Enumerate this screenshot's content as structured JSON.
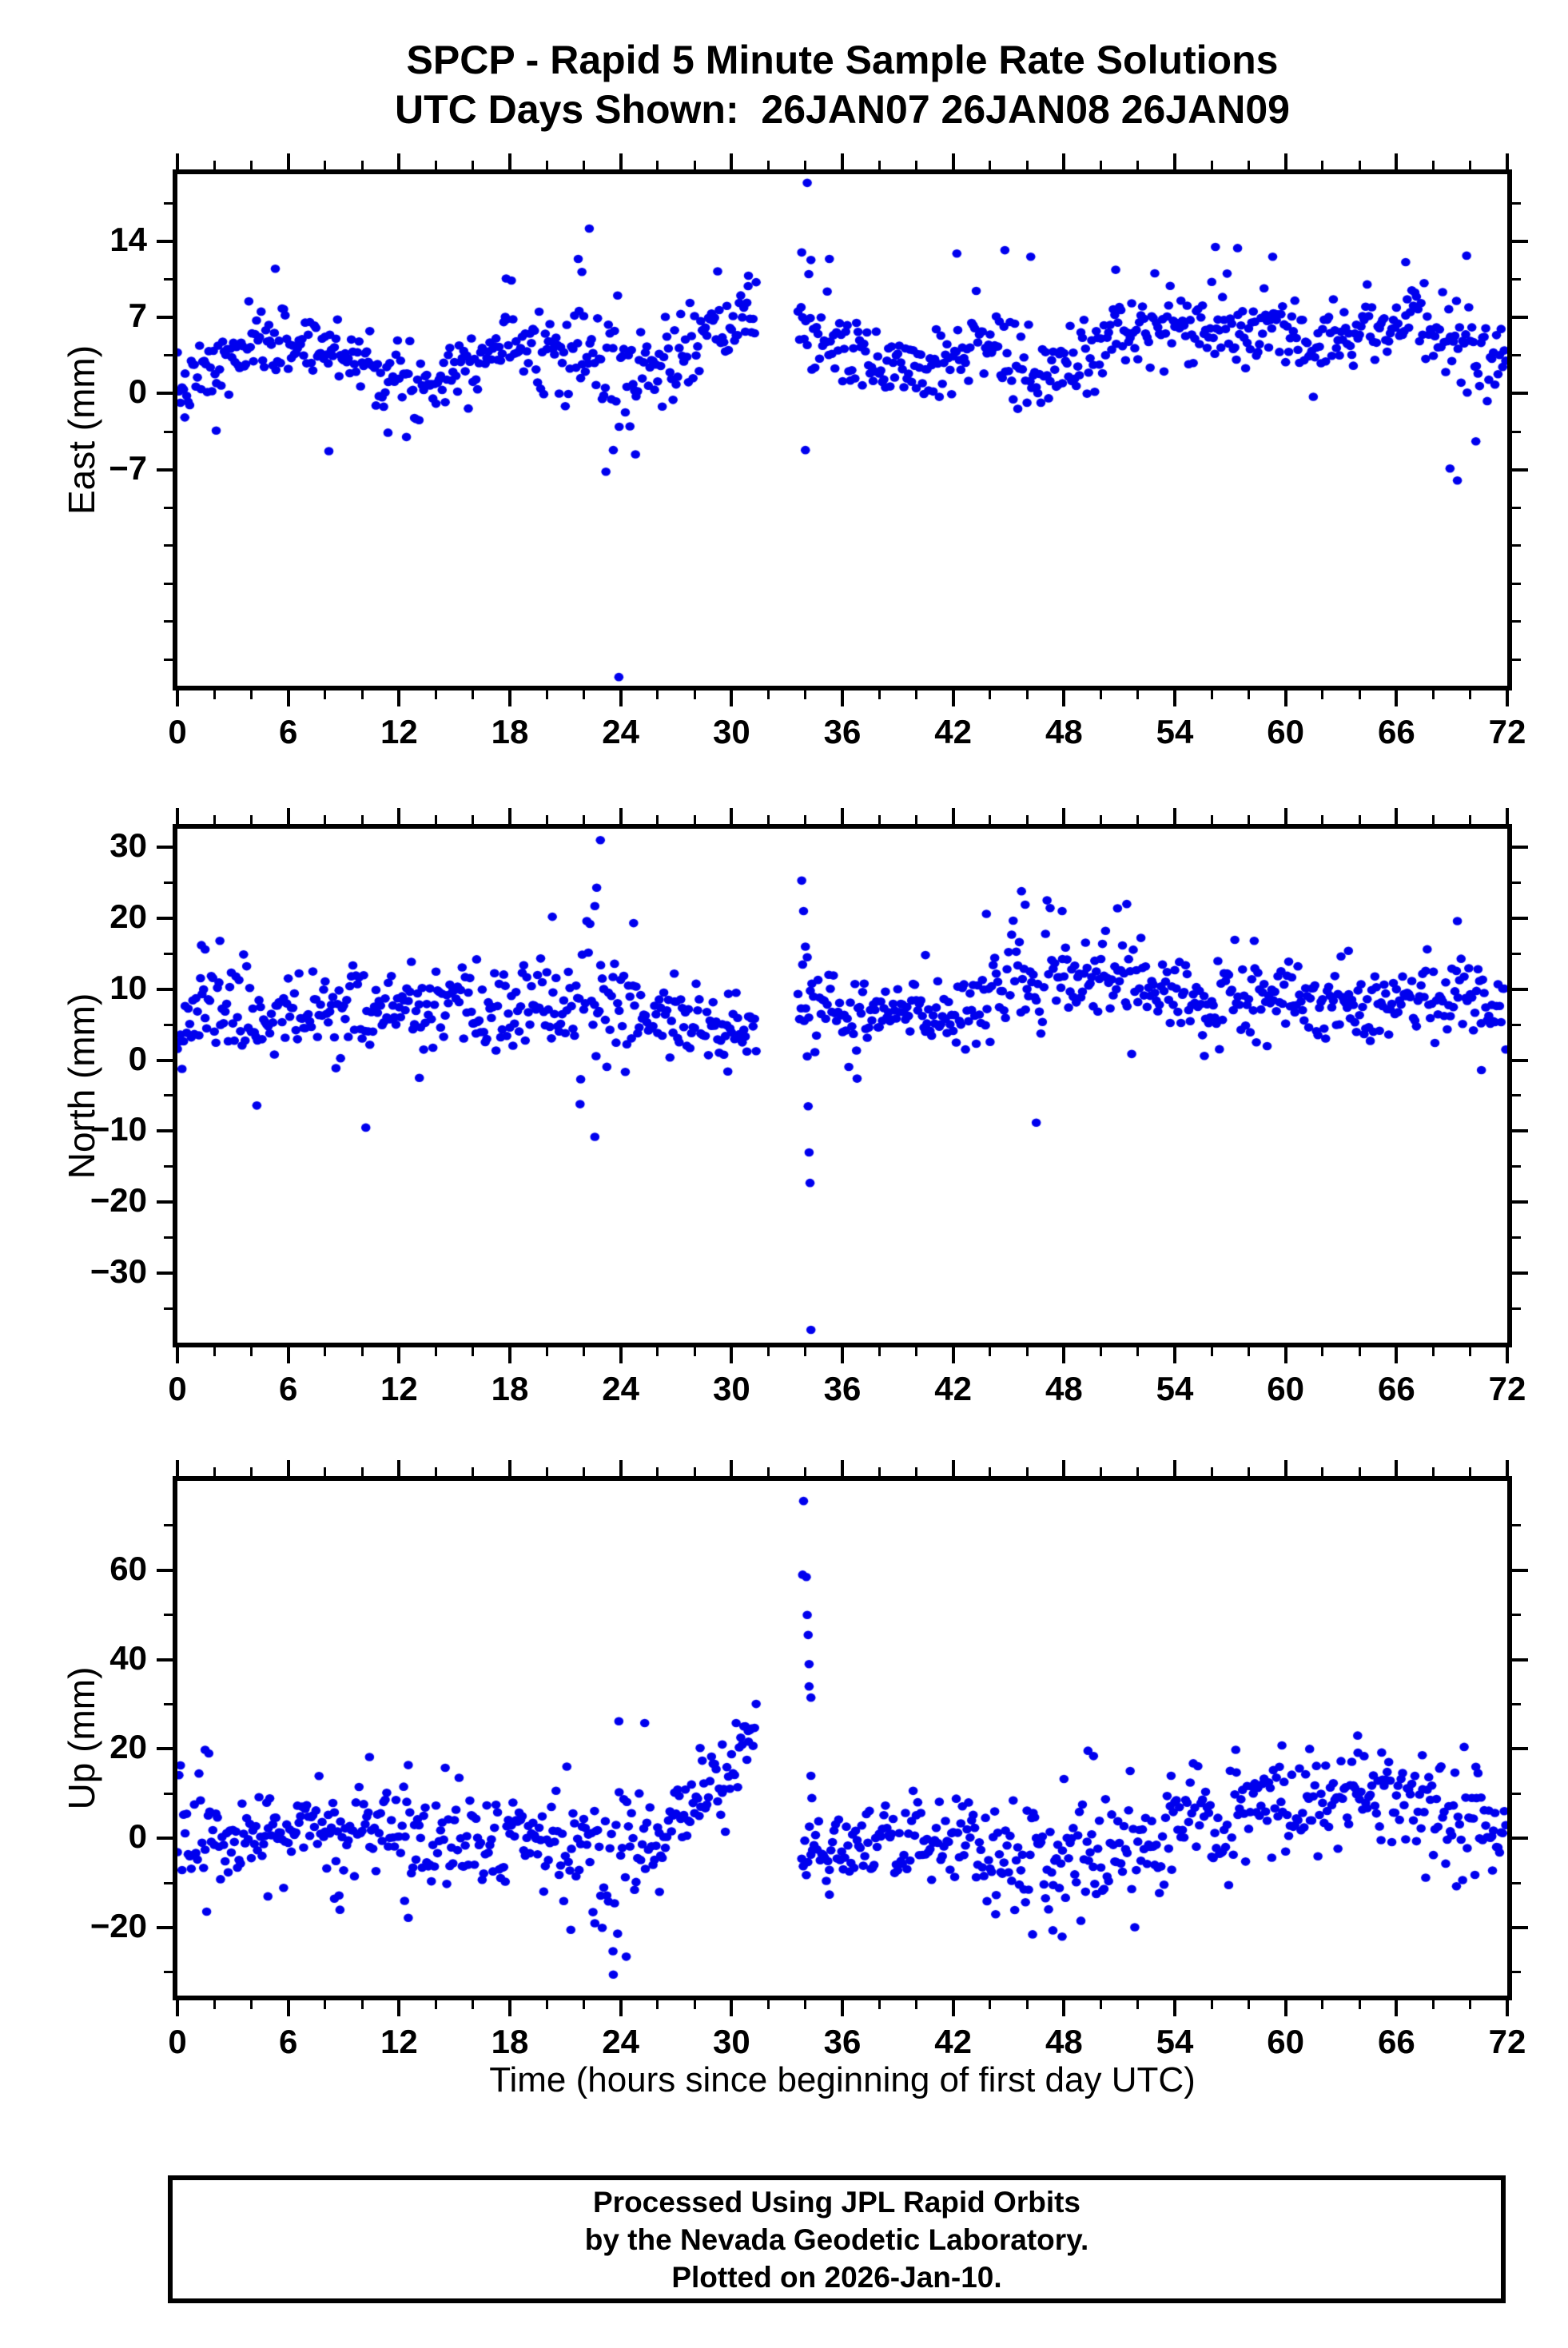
{
  "title": {
    "line1": "SPCP - Rapid 5 Minute Sample Rate Solutions",
    "line2": "UTC Days Shown:  26JAN07 26JAN08 26JAN09"
  },
  "xaxis_title": "Time (hours since beginning of first day UTC)",
  "footer": {
    "line1": "Processed Using JPL Rapid Orbits",
    "line2": "by the Nevada Geodetic Laboratory.",
    "line3": "Plotted on 2026-Jan-10."
  },
  "style": {
    "point_color": "#0000EE",
    "axis_color": "#000000",
    "background": "#ffffff"
  },
  "x_axis": {
    "lim": [
      0,
      72
    ],
    "ticks": [
      {
        "v": 0,
        "t": "0"
      },
      {
        "v": 6,
        "t": "6"
      },
      {
        "v": 12,
        "t": "12"
      },
      {
        "v": 18,
        "t": "18"
      },
      {
        "v": 24,
        "t": "24"
      },
      {
        "v": 30,
        "t": "30"
      },
      {
        "v": 36,
        "t": "36"
      },
      {
        "v": 42,
        "t": "42"
      },
      {
        "v": 48,
        "t": "48"
      },
      {
        "v": 54,
        "t": "54"
      },
      {
        "v": 60,
        "t": "60"
      },
      {
        "v": 66,
        "t": "66"
      },
      {
        "v": 72,
        "t": "72"
      }
    ],
    "minor": [
      2,
      4,
      8,
      10,
      14,
      16,
      20,
      22,
      26,
      28,
      32,
      34,
      38,
      40,
      44,
      46,
      50,
      52,
      56,
      58,
      62,
      64,
      68,
      70
    ]
  },
  "chart_data": [
    {
      "name": "east",
      "type": "scatter",
      "ylabel": "East (mm)",
      "ylim": [
        -26.9,
        20.2
      ],
      "yticks": [
        {
          "v": 14,
          "t": "14"
        },
        {
          "v": 7,
          "t": "7"
        },
        {
          "v": 0,
          "t": "0"
        },
        {
          "v": -7,
          "t": "−7"
        }
      ],
      "yminor": [
        17.5,
        10.5,
        3.5,
        -3.5,
        -10.5,
        -14,
        -17.5,
        -21,
        -24.5
      ],
      "gap": [
        31.4,
        33.6
      ],
      "sample_per_hour": 12,
      "seed": 7,
      "segments": [
        [
          0,
          1.2,
          0.2,
          1.5,
          1.3
        ],
        [
          1.2,
          5,
          1.5,
          5,
          1.5
        ],
        [
          5,
          9,
          5,
          4,
          1.6
        ],
        [
          9,
          13,
          4,
          0.6,
          1.6
        ],
        [
          13,
          16,
          0.6,
          3.6,
          1.5
        ],
        [
          16,
          19,
          3.6,
          5.4,
          1.7
        ],
        [
          19,
          21.5,
          5,
          3.8,
          2.0
        ],
        [
          21.5,
          24,
          3.8,
          2.2,
          3.2
        ],
        [
          24,
          26.5,
          2,
          2.2,
          2.4
        ],
        [
          26.5,
          31.4,
          3,
          7.4,
          1.8
        ],
        [
          33.6,
          34.6,
          7,
          6,
          3.0
        ],
        [
          34.6,
          37,
          5.6,
          3.2,
          1.7
        ],
        [
          37,
          41,
          2.8,
          2.6,
          1.5
        ],
        [
          41,
          44,
          2.8,
          5.8,
          1.8
        ],
        [
          44,
          45.5,
          5.5,
          1.5,
          2.0
        ],
        [
          45.5,
          47.5,
          1.2,
          1.8,
          2.0
        ],
        [
          47.5,
          52,
          2,
          6.4,
          1.8
        ],
        [
          52,
          58,
          6.2,
          5.8,
          1.8
        ],
        [
          58,
          63,
          5.6,
          5.4,
          1.6
        ],
        [
          63,
          67,
          5.8,
          6.8,
          1.7
        ],
        [
          67,
          70,
          6.6,
          4.6,
          1.8
        ],
        [
          70,
          72,
          4,
          2.6,
          1.8
        ]
      ],
      "outliers": [
        [
          22.3,
          15.2
        ],
        [
          21.7,
          12.4
        ],
        [
          21.9,
          11.2
        ],
        [
          23.2,
          -7.2
        ],
        [
          23.9,
          -26.1
        ],
        [
          23.6,
          -5.2
        ],
        [
          24.8,
          -5.6
        ],
        [
          34.1,
          19.4
        ],
        [
          33.8,
          13.0
        ],
        [
          34.3,
          12.3
        ],
        [
          34.0,
          -5.2
        ],
        [
          35.3,
          12.4
        ],
        [
          42.2,
          12.9
        ],
        [
          44.8,
          13.2
        ],
        [
          46.2,
          12.6
        ],
        [
          50.8,
          11.4
        ],
        [
          56.2,
          13.5
        ],
        [
          57.4,
          13.4
        ],
        [
          59.3,
          12.6
        ],
        [
          66.5,
          12.1
        ],
        [
          69.8,
          12.7
        ],
        [
          68.9,
          -6.9
        ],
        [
          69.3,
          -8.0
        ],
        [
          70.3,
          -4.4
        ],
        [
          5.3,
          11.5
        ],
        [
          8.2,
          -5.3
        ],
        [
          11.4,
          -3.6
        ],
        [
          12.4,
          -4.0
        ],
        [
          17.8,
          10.6
        ],
        [
          30.9,
          9.9
        ],
        [
          2.1,
          -3.4
        ],
        [
          0.4,
          -2.2
        ]
      ]
    },
    {
      "name": "north",
      "type": "scatter",
      "ylabel": "North (mm)",
      "ylim": [
        -39.8,
        32.6
      ],
      "yticks": [
        {
          "v": 30,
          "t": "30"
        },
        {
          "v": 20,
          "t": "20"
        },
        {
          "v": 10,
          "t": "10"
        },
        {
          "v": 0,
          "t": "0"
        },
        {
          "v": -10,
          "t": "−10"
        },
        {
          "v": -20,
          "t": "−20"
        },
        {
          "v": -30,
          "t": "−30"
        }
      ],
      "yminor": [
        25,
        15,
        5,
        -5,
        -15,
        -25,
        -35
      ],
      "gap": [
        31.4,
        33.6
      ],
      "sample_per_hour": 12,
      "seed": 11,
      "segments": [
        [
          0,
          2,
          5,
          8,
          3.0
        ],
        [
          2,
          4,
          8,
          7,
          3.4
        ],
        [
          4,
          8,
          6,
          6.5,
          2.6
        ],
        [
          8,
          11,
          7.5,
          7,
          3.0
        ],
        [
          11,
          18,
          7,
          6.5,
          2.6
        ],
        [
          18,
          21.5,
          7,
          8,
          3.0
        ],
        [
          21.5,
          23.5,
          8,
          8,
          4.0
        ],
        [
          23.5,
          25,
          8,
          7,
          3.6
        ],
        [
          25,
          31.4,
          6.5,
          4,
          2.4
        ],
        [
          33.6,
          34.6,
          8,
          7,
          3.4
        ],
        [
          34.6,
          38,
          6,
          6,
          2.8
        ],
        [
          38,
          42,
          6.5,
          6.5,
          2.5
        ],
        [
          42,
          46,
          7,
          11.5,
          3.0
        ],
        [
          46,
          48,
          10.5,
          11,
          3.4
        ],
        [
          48,
          53,
          12,
          11,
          3.0
        ],
        [
          53,
          56,
          9,
          8,
          2.6
        ],
        [
          56,
          60,
          8,
          8,
          3.0
        ],
        [
          60,
          66,
          8,
          8.5,
          2.5
        ],
        [
          66,
          70,
          9,
          9,
          2.6
        ],
        [
          70,
          72,
          8.5,
          8,
          2.5
        ]
      ],
      "outliers": [
        [
          22.9,
          31.0
        ],
        [
          22.7,
          24.3
        ],
        [
          22.6,
          21.7
        ],
        [
          20.3,
          20.2
        ],
        [
          24.7,
          19.3
        ],
        [
          1.3,
          16.2
        ],
        [
          1.5,
          15.6
        ],
        [
          2.3,
          16.8
        ],
        [
          10.2,
          -9.5
        ],
        [
          4.3,
          -6.4
        ],
        [
          21.8,
          -6.2
        ],
        [
          22.6,
          -10.8
        ],
        [
          33.8,
          25.3
        ],
        [
          33.9,
          21.0
        ],
        [
          34.0,
          16.0
        ],
        [
          34.1,
          14.5
        ],
        [
          34.15,
          -6.5
        ],
        [
          34.2,
          -13.0
        ],
        [
          34.25,
          -17.3
        ],
        [
          34.3,
          -38.0
        ],
        [
          45.7,
          23.8
        ],
        [
          43.8,
          20.6
        ],
        [
          45.9,
          21.9
        ],
        [
          46.5,
          -8.8
        ],
        [
          47.9,
          21.0
        ],
        [
          50.9,
          21.4
        ],
        [
          51.4,
          22.0
        ],
        [
          69.3,
          19.6
        ],
        [
          13.1,
          -2.5
        ],
        [
          29.8,
          -1.6
        ],
        [
          16.2,
          14.2
        ],
        [
          58.3,
          16.8
        ],
        [
          63.4,
          15.4
        ],
        [
          70.6,
          -1.4
        ],
        [
          36.8,
          -2.6
        ],
        [
          55.6,
          0.6
        ],
        [
          40.5,
          14.8
        ],
        [
          26.9,
          12.2
        ]
      ]
    },
    {
      "name": "up",
      "type": "scatter",
      "ylabel": "Up (mm)",
      "ylim": [
        -35.2,
        80.0
      ],
      "yticks": [
        {
          "v": 60,
          "t": "60"
        },
        {
          "v": 40,
          "t": "40"
        },
        {
          "v": 20,
          "t": "20"
        },
        {
          "v": 0,
          "t": "0"
        },
        {
          "v": -20,
          "t": "−20"
        }
      ],
      "yminor": [
        70,
        50,
        30,
        10,
        -10,
        -30
      ],
      "gap": [
        31.4,
        33.6
      ],
      "sample_per_hour": 12,
      "seed": 13,
      "segments": [
        [
          0,
          2,
          1,
          0,
          6.0
        ],
        [
          2,
          6,
          -2,
          -1,
          5.0
        ],
        [
          6,
          9,
          3,
          2,
          6.0
        ],
        [
          9,
          12,
          0,
          1,
          6.0
        ],
        [
          12,
          16,
          1,
          0,
          6.0
        ],
        [
          16,
          20,
          0,
          -1,
          5.0
        ],
        [
          20,
          23,
          -2,
          -4,
          7.0
        ],
        [
          23,
          25,
          -4,
          -4,
          9.0
        ],
        [
          25,
          28,
          0,
          6,
          6.0
        ],
        [
          28,
          31.4,
          8,
          22,
          5.0
        ],
        [
          33.8,
          38,
          -2.5,
          -3,
          5.0
        ],
        [
          38,
          42,
          -1,
          -1,
          5.0
        ],
        [
          42,
          45,
          -3,
          -4,
          5.5
        ],
        [
          45,
          48,
          -5,
          -5,
          6.0
        ],
        [
          48,
          50,
          -1,
          0,
          7.0
        ],
        [
          50,
          54,
          -2,
          -1,
          6.0
        ],
        [
          54,
          58,
          2,
          4,
          6.0
        ],
        [
          58,
          62,
          7,
          8,
          5.0
        ],
        [
          62,
          66,
          9,
          8,
          5.0
        ],
        [
          66,
          69,
          7,
          6,
          5.0
        ],
        [
          69,
          72,
          5,
          3,
          6.0
        ]
      ],
      "outliers": [
        [
          33.9,
          75.5
        ],
        [
          33.85,
          59.0
        ],
        [
          34.05,
          58.5
        ],
        [
          34.1,
          50.0
        ],
        [
          34.15,
          45.5
        ],
        [
          34.2,
          39.0
        ],
        [
          34.2,
          34.0
        ],
        [
          34.3,
          31.5
        ],
        [
          34.3,
          14.0
        ],
        [
          34.35,
          9.0
        ],
        [
          23.6,
          -30.5
        ],
        [
          24.3,
          -26.5
        ],
        [
          23.9,
          26.2
        ],
        [
          25.3,
          25.8
        ],
        [
          21.3,
          -20.5
        ],
        [
          22.6,
          -19.0
        ],
        [
          1.5,
          19.8
        ],
        [
          1.7,
          19.0
        ],
        [
          10.4,
          18.2
        ],
        [
          12.5,
          -17.8
        ],
        [
          12.3,
          -14.0
        ],
        [
          8.8,
          -16.0
        ],
        [
          8.5,
          -13.5
        ],
        [
          4.9,
          -13.0
        ],
        [
          30.9,
          24.0
        ],
        [
          28.3,
          20.2
        ],
        [
          44.3,
          -17.0
        ],
        [
          46.3,
          -21.5
        ],
        [
          47.4,
          -20.6
        ],
        [
          47.9,
          -22.0
        ],
        [
          49.3,
          19.6
        ],
        [
          49.6,
          18.4
        ],
        [
          57.3,
          19.8
        ],
        [
          59.8,
          20.8
        ],
        [
          61.3,
          20.0
        ],
        [
          63.9,
          23.0
        ],
        [
          65.2,
          19.2
        ],
        [
          67.4,
          18.6
        ],
        [
          53.8,
          14.0
        ],
        [
          35.3,
          -12.6
        ],
        [
          70.3,
          16.0
        ],
        [
          71.2,
          -7.2
        ],
        [
          26.1,
          -12.0
        ],
        [
          29.5,
          21.0
        ]
      ]
    }
  ]
}
